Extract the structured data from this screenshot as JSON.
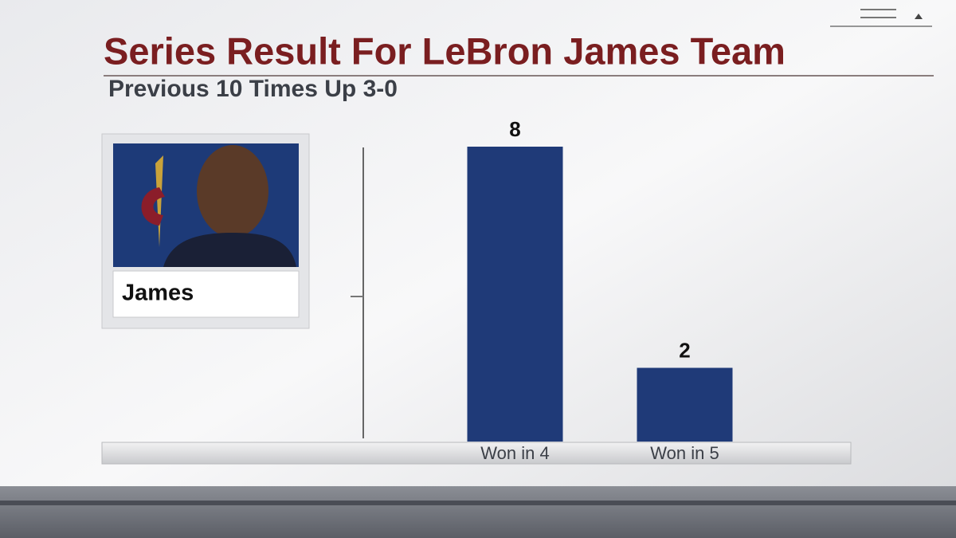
{
  "chart_data": {
    "type": "bar",
    "title": "Series Result For LeBron James Team",
    "subtitle": "Previous 10 Times Up 3-0",
    "player": "James",
    "categories": [
      "Won in 4",
      "Won in 5"
    ],
    "values": [
      8,
      2
    ],
    "color": "#1f3a78",
    "ylim": [
      0,
      8
    ]
  }
}
